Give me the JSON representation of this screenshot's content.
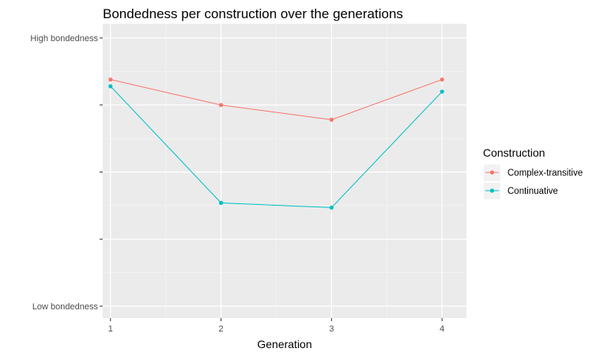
{
  "chart_data": {
    "type": "line",
    "title": "Bondedness per construction over the generations",
    "xlabel": "Generation",
    "ylabel": "",
    "x": [
      1,
      2,
      3,
      4
    ],
    "x_tick_labels": [
      "1",
      "2",
      "3",
      "4"
    ],
    "xlim": [
      0.93,
      4.22
    ],
    "ylim": [
      0,
      4
    ],
    "y_tick_values": [
      0,
      1,
      2,
      3,
      4
    ],
    "y_tick_labels": [
      "Low bondedness",
      "",
      "",
      "",
      "High bondedness"
    ],
    "grid": true,
    "legend": {
      "title": "Construction",
      "placement": "right"
    },
    "series": [
      {
        "name": "Complex-transitive",
        "color": "#F8766D",
        "values": [
          3.38,
          3.0,
          2.78,
          3.38
        ]
      },
      {
        "name": "Continuative",
        "color": "#00BFC4",
        "values": [
          3.28,
          1.54,
          1.47,
          3.2
        ]
      }
    ]
  }
}
